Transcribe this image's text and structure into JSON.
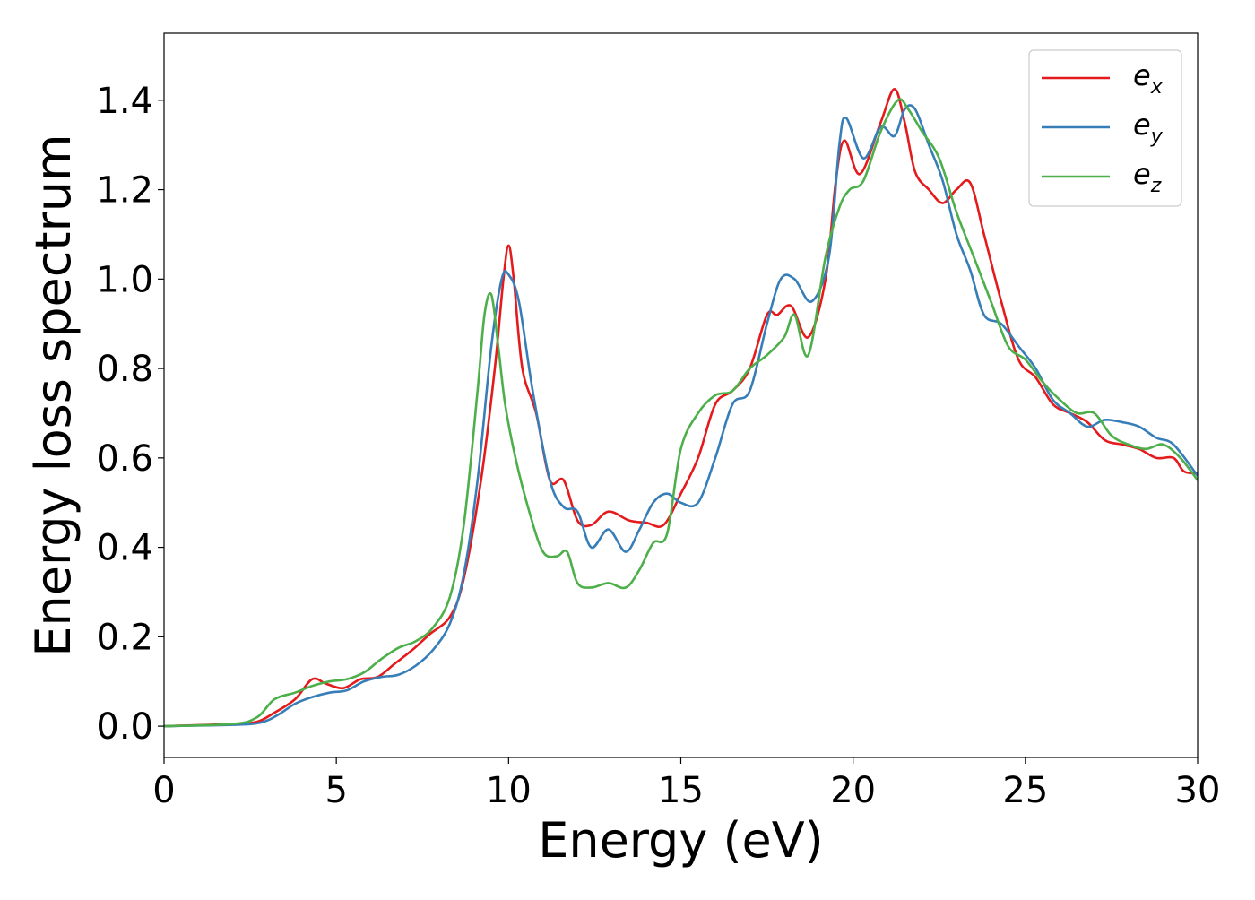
{
  "chart_data": {
    "type": "line",
    "title": "",
    "xlabel": "Energy (eV)",
    "ylabel": "Energy loss spectrum",
    "xlim": [
      0,
      30
    ],
    "ylim": [
      -0.07,
      1.55
    ],
    "xticks": [
      0,
      5,
      10,
      15,
      20,
      25,
      30
    ],
    "yticks": [
      0.0,
      0.2,
      0.4,
      0.6,
      0.8,
      1.0,
      1.2,
      1.4
    ],
    "xtick_labels": [
      "0",
      "5",
      "10",
      "15",
      "20",
      "25",
      "30"
    ],
    "ytick_labels": [
      "0.0",
      "0.2",
      "0.4",
      "0.6",
      "0.8",
      "1.0",
      "1.2",
      "1.4"
    ],
    "grid": false,
    "legend_position": "top-right",
    "series": [
      {
        "name": "e_x",
        "label_base": "e",
        "label_sub": "x",
        "color": "#e41a1c",
        "x": [
          0,
          2,
          2.7,
          3.2,
          3.8,
          4.3,
          4.7,
          5.2,
          5.7,
          6.2,
          6.7,
          7.2,
          7.7,
          8.3,
          8.7,
          9.2,
          9.6,
          9.85,
          10.0,
          10.15,
          10.4,
          10.8,
          11.2,
          11.6,
          12.0,
          12.4,
          12.9,
          13.5,
          14.0,
          14.5,
          15.0,
          15.5,
          16.0,
          16.5,
          17.0,
          17.5,
          17.8,
          18.2,
          18.7,
          19.2,
          19.5,
          19.75,
          20.2,
          20.8,
          21.2,
          21.5,
          21.8,
          22.2,
          22.6,
          23.0,
          23.4,
          23.8,
          24.3,
          24.8,
          25.3,
          25.8,
          26.3,
          26.8,
          27.3,
          27.8,
          28.3,
          28.8,
          29.3,
          29.6,
          30
        ],
        "y": [
          0.0,
          0.005,
          0.01,
          0.03,
          0.06,
          0.105,
          0.095,
          0.085,
          0.105,
          0.11,
          0.14,
          0.17,
          0.205,
          0.245,
          0.33,
          0.55,
          0.8,
          1.0,
          1.075,
          1.0,
          0.8,
          0.7,
          0.55,
          0.55,
          0.46,
          0.45,
          0.48,
          0.46,
          0.455,
          0.45,
          0.52,
          0.6,
          0.72,
          0.75,
          0.8,
          0.92,
          0.92,
          0.94,
          0.87,
          1.0,
          1.22,
          1.31,
          1.235,
          1.35,
          1.425,
          1.35,
          1.24,
          1.2,
          1.17,
          1.2,
          1.215,
          1.1,
          0.95,
          0.82,
          0.78,
          0.72,
          0.7,
          0.68,
          0.64,
          0.63,
          0.62,
          0.6,
          0.6,
          0.57,
          0.565
        ]
      },
      {
        "name": "e_y",
        "label_base": "e",
        "label_sub": "y",
        "color": "#377eb8",
        "x": [
          0,
          2,
          2.8,
          3.3,
          3.8,
          4.3,
          4.8,
          5.3,
          5.8,
          6.3,
          6.8,
          7.3,
          7.8,
          8.3,
          8.7,
          9.1,
          9.5,
          9.8,
          10.0,
          10.3,
          10.7,
          11.2,
          11.6,
          12.0,
          12.4,
          12.9,
          13.4,
          13.8,
          14.2,
          14.6,
          15.0,
          15.5,
          16.0,
          16.5,
          17.0,
          17.5,
          17.9,
          18.3,
          18.8,
          19.3,
          19.6,
          19.8,
          20.3,
          20.8,
          21.2,
          21.5,
          21.8,
          22.2,
          22.6,
          23.0,
          23.4,
          23.8,
          24.3,
          24.8,
          25.3,
          25.8,
          26.3,
          26.8,
          27.3,
          27.8,
          28.3,
          28.8,
          29.3,
          30
        ],
        "y": [
          0.0,
          0.003,
          0.008,
          0.025,
          0.05,
          0.065,
          0.075,
          0.08,
          0.1,
          0.11,
          0.115,
          0.135,
          0.17,
          0.23,
          0.34,
          0.55,
          0.85,
          1.0,
          1.01,
          0.95,
          0.75,
          0.55,
          0.49,
          0.48,
          0.4,
          0.44,
          0.39,
          0.44,
          0.5,
          0.52,
          0.5,
          0.5,
          0.6,
          0.72,
          0.75,
          0.9,
          1.0,
          1.0,
          0.95,
          1.05,
          1.3,
          1.36,
          1.27,
          1.34,
          1.32,
          1.38,
          1.38,
          1.3,
          1.22,
          1.1,
          1.02,
          0.92,
          0.9,
          0.85,
          0.8,
          0.73,
          0.7,
          0.67,
          0.685,
          0.68,
          0.67,
          0.645,
          0.63,
          0.56
        ]
      },
      {
        "name": "e_z",
        "label_base": "e",
        "label_sub": "z",
        "color": "#4daf4a",
        "x": [
          0,
          2,
          2.7,
          3.2,
          3.8,
          4.3,
          4.8,
          5.3,
          5.8,
          6.3,
          6.8,
          7.3,
          7.8,
          8.3,
          8.7,
          9.1,
          9.3,
          9.5,
          9.7,
          9.9,
          10.2,
          10.6,
          11.0,
          11.4,
          11.7,
          12.0,
          12.4,
          12.9,
          13.4,
          13.8,
          14.2,
          14.6,
          15.0,
          15.5,
          16.0,
          16.5,
          17.0,
          17.5,
          18.0,
          18.3,
          18.7,
          19.2,
          19.6,
          19.9,
          20.3,
          20.8,
          21.3,
          21.6,
          22.0,
          22.5,
          23.0,
          23.5,
          24.0,
          24.5,
          25.0,
          25.5,
          26.0,
          26.5,
          27.0,
          27.5,
          28.0,
          28.5,
          29.0,
          29.5,
          30
        ],
        "y": [
          0.0,
          0.005,
          0.02,
          0.06,
          0.075,
          0.09,
          0.1,
          0.105,
          0.12,
          0.15,
          0.175,
          0.19,
          0.22,
          0.29,
          0.45,
          0.75,
          0.92,
          0.965,
          0.85,
          0.72,
          0.6,
          0.48,
          0.39,
          0.38,
          0.39,
          0.32,
          0.31,
          0.32,
          0.31,
          0.35,
          0.41,
          0.43,
          0.62,
          0.7,
          0.74,
          0.75,
          0.8,
          0.83,
          0.87,
          0.92,
          0.83,
          1.05,
          1.16,
          1.2,
          1.22,
          1.33,
          1.4,
          1.38,
          1.33,
          1.27,
          1.15,
          1.05,
          0.95,
          0.85,
          0.82,
          0.77,
          0.73,
          0.7,
          0.7,
          0.65,
          0.63,
          0.62,
          0.63,
          0.6,
          0.55
        ]
      }
    ]
  }
}
